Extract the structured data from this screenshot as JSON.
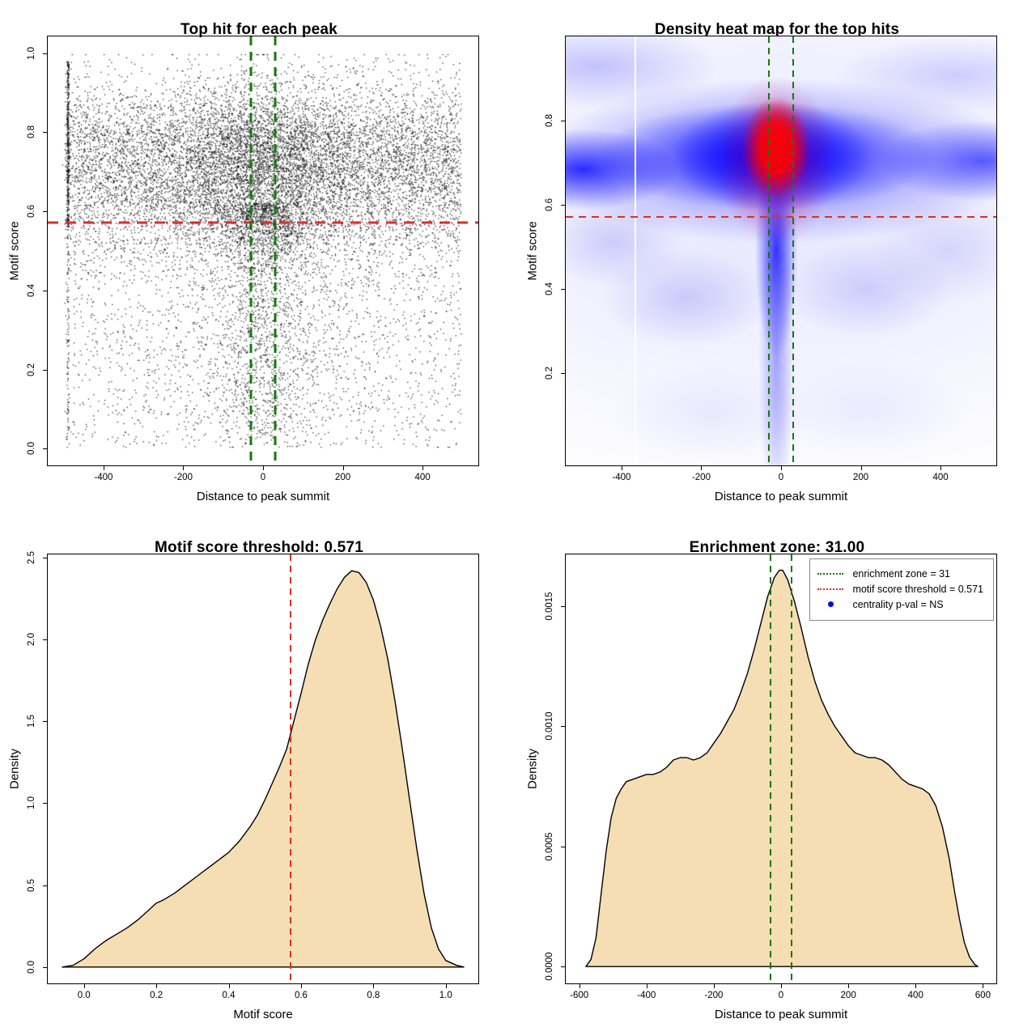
{
  "colors": {
    "red": "#DD2F23",
    "green": "#117A11",
    "blue": "#0000FF",
    "wheat": "#F5DEB3",
    "black": "#000000",
    "white": "#FFFFFF",
    "heat_blue": "#0000FF",
    "heat_red": "#FF0000"
  },
  "thresholds": {
    "motif_score_threshold": 0.571,
    "enrichment_zone": 31,
    "centrality_p_value": "NS"
  },
  "chart_data": [
    {
      "type": "scatter",
      "title": "Top hit for each peak",
      "xlabel": "Distance to peak summit",
      "ylabel": "Motif score",
      "xlim": [
        -540,
        540
      ],
      "ylim": [
        -0.042,
        1.042
      ],
      "xticks": [
        -400,
        -200,
        0,
        200,
        400
      ],
      "xtick_labels": [
        "-400",
        "-200",
        "0",
        "200",
        "400"
      ],
      "yticks": [
        0.0,
        0.2,
        0.4,
        0.6,
        0.8,
        1.0
      ],
      "ytick_labels": [
        "0.0",
        "0.2",
        "0.4",
        "0.6",
        "0.8",
        "1.0"
      ],
      "grid": false,
      "points_summary": "~16000 black 1px points; x uniform on [-500,500] with extra density near 0; motif score concentrated 0.6-0.9 (mode ~0.74), sparser below threshold; dense vertical stripe of points at x ~ -490 for scores 0.55-0.98",
      "generator": {
        "seed": 42,
        "n": 16000,
        "edge_x": -489,
        "edge_frac": 0.03,
        "uniform_frac": 0.72,
        "center_sd": 135,
        "band_frac": 0.6,
        "band_mean": 0.735,
        "band_sd": 0.092,
        "mid_frac": 0.12,
        "mid_mean": 0.58,
        "mid_sd": 0.06,
        "low_frac": 0.21,
        "low_max": 0.62,
        "low_pow": 0.8,
        "center_col_frac": 0.2,
        "center_col_sd": 55
      },
      "lines": [
        {
          "orient": "h",
          "value": 0.571,
          "color": "red",
          "width": 3,
          "dash": [
            13,
            9
          ],
          "name": "motif-threshold-line"
        },
        {
          "orient": "v",
          "value": -31,
          "color": "green",
          "width": 3,
          "dash": [
            11,
            8
          ],
          "name": "enrichment-zone-line-left"
        },
        {
          "orient": "v",
          "value": 31,
          "color": "green",
          "width": 3,
          "dash": [
            11,
            8
          ],
          "name": "enrichment-zone-line-right"
        }
      ]
    },
    {
      "type": "heatmap",
      "title": "Density heat map for the top hits",
      "xlabel": "Distance to peak summit",
      "ylabel": "Motif score",
      "xlim": [
        -540,
        540
      ],
      "ylim": [
        -0.02,
        1.0
      ],
      "xticks": [
        -400,
        -200,
        0,
        200,
        400
      ],
      "xtick_labels": [
        "-400",
        "-200",
        "0",
        "200",
        "400"
      ],
      "yticks": [
        0.2,
        0.4,
        0.6,
        0.8
      ],
      "ytick_labels": [
        "0.2",
        "0.4",
        "0.6",
        "0.8"
      ],
      "colormap": [
        "#FFFFFF",
        "#0000FF",
        "#FF0000"
      ],
      "hotspot": {
        "x": 0,
        "y": 0.75
      },
      "density_summary": "high-density blue band across motif scores 0.6-0.9 spanning all distances, red maximum centered near distance 0 and motif score ~0.75, blue column descending at distance ~0 toward low scores, pale lavender wash over lower half, white vertical artifact line near distance -365",
      "lines": [
        {
          "orient": "v",
          "value": -365,
          "color": "white",
          "width": 2,
          "dash": null,
          "name": "artifact-white-line"
        },
        {
          "orient": "h",
          "value": 0.571,
          "color": "red",
          "width": 2,
          "dash": [
            9,
            7
          ],
          "name": "motif-threshold-line"
        },
        {
          "orient": "v",
          "value": -31,
          "color": "green",
          "width": 2,
          "dash": [
            8,
            6
          ],
          "name": "enrichment-zone-line-left"
        },
        {
          "orient": "v",
          "value": 31,
          "color": "green",
          "width": 2,
          "dash": [
            8,
            6
          ],
          "name": "enrichment-zone-line-right"
        }
      ]
    },
    {
      "type": "area",
      "title": "Motif score threshold: 0.571",
      "xlabel": "Motif score",
      "ylabel": "Density",
      "xlim": [
        -0.1,
        1.09
      ],
      "ylim": [
        -0.1,
        2.52
      ],
      "xticks": [
        0.0,
        0.2,
        0.4,
        0.6,
        0.8,
        1.0
      ],
      "xtick_labels": [
        "0.0",
        "0.2",
        "0.4",
        "0.6",
        "0.8",
        "1.0"
      ],
      "yticks": [
        0.0,
        0.5,
        1.0,
        1.5,
        2.0,
        2.5
      ],
      "ytick_labels": [
        "0.0",
        "0.5",
        "1.0",
        "1.5",
        "2.0",
        "2.5"
      ],
      "fill": "wheat",
      "curve": [
        [
          -0.06,
          0
        ],
        [
          -0.03,
          0.01
        ],
        [
          0.0,
          0.05
        ],
        [
          0.03,
          0.11
        ],
        [
          0.06,
          0.16
        ],
        [
          0.09,
          0.2
        ],
        [
          0.12,
          0.24
        ],
        [
          0.15,
          0.29
        ],
        [
          0.18,
          0.35
        ],
        [
          0.2,
          0.39
        ],
        [
          0.22,
          0.41
        ],
        [
          0.25,
          0.45
        ],
        [
          0.28,
          0.5
        ],
        [
          0.31,
          0.55
        ],
        [
          0.34,
          0.6
        ],
        [
          0.37,
          0.65
        ],
        [
          0.4,
          0.7
        ],
        [
          0.43,
          0.77
        ],
        [
          0.46,
          0.86
        ],
        [
          0.48,
          0.93
        ],
        [
          0.5,
          1.02
        ],
        [
          0.52,
          1.12
        ],
        [
          0.54,
          1.22
        ],
        [
          0.56,
          1.33
        ],
        [
          0.58,
          1.5
        ],
        [
          0.6,
          1.67
        ],
        [
          0.62,
          1.85
        ],
        [
          0.64,
          2.0
        ],
        [
          0.66,
          2.12
        ],
        [
          0.68,
          2.22
        ],
        [
          0.7,
          2.31
        ],
        [
          0.72,
          2.38
        ],
        [
          0.74,
          2.42
        ],
        [
          0.76,
          2.41
        ],
        [
          0.78,
          2.35
        ],
        [
          0.8,
          2.24
        ],
        [
          0.82,
          2.08
        ],
        [
          0.84,
          1.88
        ],
        [
          0.86,
          1.62
        ],
        [
          0.88,
          1.33
        ],
        [
          0.9,
          1.02
        ],
        [
          0.92,
          0.72
        ],
        [
          0.94,
          0.45
        ],
        [
          0.96,
          0.24
        ],
        [
          0.98,
          0.11
        ],
        [
          1.0,
          0.04
        ],
        [
          1.03,
          0.01
        ],
        [
          1.05,
          0
        ]
      ],
      "lines": [
        {
          "orient": "v",
          "value": 0.571,
          "color": "red",
          "width": 2,
          "dash": [
            8,
            6
          ],
          "name": "motif-threshold-line"
        }
      ]
    },
    {
      "type": "area",
      "title": "Enrichment zone: 31.00",
      "xlabel": "Distance to peak summit",
      "ylabel": "Density",
      "xlim": [
        -640,
        640
      ],
      "ylim": [
        -7e-05,
        0.001716
      ],
      "xticks": [
        -600,
        -400,
        -200,
        0,
        200,
        400,
        600
      ],
      "xtick_labels": [
        "-600",
        "-400",
        "-200",
        "0",
        "200",
        "400",
        "600"
      ],
      "yticks": [
        0.0,
        0.0005,
        0.001,
        0.0015
      ],
      "ytick_labels": [
        "0.0000",
        "0.0005",
        "0.0010",
        "0.0015"
      ],
      "fill": "wheat",
      "curve": [
        [
          -580,
          0
        ],
        [
          -565,
          3e-05
        ],
        [
          -550,
          0.00012
        ],
        [
          -535,
          0.0003
        ],
        [
          -520,
          0.00048
        ],
        [
          -505,
          0.00062
        ],
        [
          -490,
          0.0007
        ],
        [
          -475,
          0.00074
        ],
        [
          -460,
          0.00077
        ],
        [
          -440,
          0.00078
        ],
        [
          -420,
          0.00079
        ],
        [
          -400,
          0.0008
        ],
        [
          -380,
          0.0008
        ],
        [
          -360,
          0.00081
        ],
        [
          -340,
          0.00083
        ],
        [
          -320,
          0.00086
        ],
        [
          -300,
          0.00087
        ],
        [
          -280,
          0.00087
        ],
        [
          -260,
          0.00086
        ],
        [
          -240,
          0.00087
        ],
        [
          -220,
          0.00089
        ],
        [
          -200,
          0.00093
        ],
        [
          -180,
          0.00097
        ],
        [
          -160,
          0.00102
        ],
        [
          -140,
          0.00107
        ],
        [
          -120,
          0.00114
        ],
        [
          -100,
          0.00122
        ],
        [
          -80,
          0.00132
        ],
        [
          -60,
          0.00143
        ],
        [
          -40,
          0.00154
        ],
        [
          -20,
          0.00162
        ],
        [
          -5,
          0.00165
        ],
        [
          5,
          0.00165
        ],
        [
          20,
          0.00161
        ],
        [
          40,
          0.00152
        ],
        [
          60,
          0.00141
        ],
        [
          80,
          0.00129
        ],
        [
          100,
          0.00119
        ],
        [
          120,
          0.00111
        ],
        [
          140,
          0.00105
        ],
        [
          160,
          0.001
        ],
        [
          180,
          0.00096
        ],
        [
          200,
          0.00092
        ],
        [
          220,
          0.00089
        ],
        [
          240,
          0.00088
        ],
        [
          260,
          0.00087
        ],
        [
          280,
          0.00087
        ],
        [
          300,
          0.00086
        ],
        [
          320,
          0.00084
        ],
        [
          340,
          0.00081
        ],
        [
          360,
          0.00078
        ],
        [
          380,
          0.00076
        ],
        [
          400,
          0.00075
        ],
        [
          420,
          0.00074
        ],
        [
          440,
          0.00072
        ],
        [
          460,
          0.00067
        ],
        [
          480,
          0.00058
        ],
        [
          500,
          0.00045
        ],
        [
          515,
          0.00032
        ],
        [
          530,
          0.0002
        ],
        [
          545,
          0.0001
        ],
        [
          560,
          4e-05
        ],
        [
          575,
          1e-05
        ],
        [
          585,
          0
        ]
      ],
      "lines": [
        {
          "orient": "v",
          "value": -31,
          "color": "green",
          "width": 2,
          "dash": [
            8,
            6
          ],
          "name": "enrichment-zone-line-left"
        },
        {
          "orient": "v",
          "value": 31,
          "color": "green",
          "width": 2,
          "dash": [
            8,
            6
          ],
          "name": "enrichment-zone-line-right"
        }
      ],
      "legend": {
        "position": "top-right",
        "items": [
          {
            "swatch": "green-dotted",
            "label": "enrichment zone = 31"
          },
          {
            "swatch": "red-dotted",
            "label": "motif score threshold = 0.571"
          },
          {
            "swatch": "blue-dot",
            "label": "centrality p-val = NS"
          }
        ]
      }
    }
  ]
}
